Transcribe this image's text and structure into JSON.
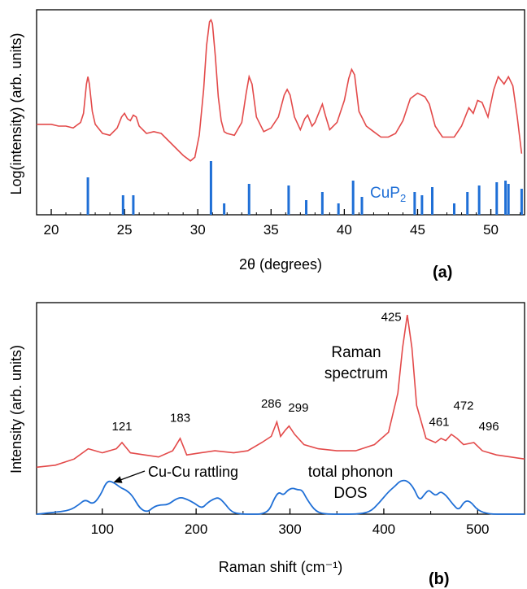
{
  "colors": {
    "red": "#e34a4a",
    "blue": "#1f6fd6",
    "axis": "#000000"
  },
  "chart_data": [
    {
      "type": "line",
      "panel_label": "(a)",
      "xlabel": "2θ (degrees)",
      "ylabel": "Log(intensity) (arb. units)",
      "xlim": [
        19,
        52.3
      ],
      "ylim": [
        0,
        1
      ],
      "xticks": [
        20,
        25,
        30,
        35,
        40,
        45,
        50
      ],
      "series": [
        {
          "name": "",
          "color": "#e34a4a",
          "x": [
            19.0,
            19.5,
            20.0,
            20.5,
            21.0,
            21.5,
            22.0,
            22.2,
            22.4,
            22.5,
            22.6,
            22.8,
            23.0,
            23.5,
            24.0,
            24.5,
            24.8,
            25.0,
            25.2,
            25.4,
            25.6,
            25.8,
            26.0,
            26.5,
            27.0,
            27.5,
            28.0,
            28.5,
            29.0,
            29.5,
            29.8,
            30.1,
            30.4,
            30.6,
            30.8,
            30.9,
            31.0,
            31.2,
            31.4,
            31.6,
            31.8,
            32.0,
            32.5,
            33.0,
            33.3,
            33.5,
            33.7,
            34.0,
            34.5,
            35.0,
            35.5,
            35.9,
            36.1,
            36.3,
            36.6,
            37.0,
            37.3,
            37.5,
            37.8,
            38.0,
            38.3,
            38.5,
            38.7,
            39.0,
            39.5,
            40.0,
            40.3,
            40.5,
            40.7,
            41.0,
            41.5,
            42.0,
            42.5,
            43.0,
            43.5,
            44.0,
            44.5,
            45.0,
            45.5,
            45.8,
            46.2,
            46.7,
            47.5,
            48.0,
            48.5,
            48.8,
            49.1,
            49.4,
            49.8,
            50.2,
            50.5,
            50.9,
            51.2,
            51.5,
            51.8,
            52.1
          ],
          "y": [
            0.41,
            0.41,
            0.41,
            0.4,
            0.4,
            0.39,
            0.42,
            0.47,
            0.63,
            0.67,
            0.63,
            0.48,
            0.41,
            0.36,
            0.35,
            0.39,
            0.45,
            0.47,
            0.44,
            0.43,
            0.46,
            0.45,
            0.4,
            0.36,
            0.37,
            0.36,
            0.32,
            0.28,
            0.24,
            0.21,
            0.23,
            0.35,
            0.6,
            0.84,
            0.97,
            0.98,
            0.96,
            0.78,
            0.56,
            0.43,
            0.37,
            0.36,
            0.35,
            0.42,
            0.58,
            0.67,
            0.63,
            0.45,
            0.37,
            0.39,
            0.45,
            0.57,
            0.6,
            0.57,
            0.45,
            0.38,
            0.44,
            0.46,
            0.4,
            0.42,
            0.48,
            0.52,
            0.46,
            0.38,
            0.42,
            0.54,
            0.66,
            0.71,
            0.68,
            0.48,
            0.4,
            0.37,
            0.34,
            0.34,
            0.36,
            0.43,
            0.55,
            0.58,
            0.56,
            0.52,
            0.4,
            0.34,
            0.34,
            0.4,
            0.5,
            0.47,
            0.54,
            0.53,
            0.45,
            0.6,
            0.67,
            0.63,
            0.67,
            0.62,
            0.45,
            0.25
          ]
        }
      ],
      "reference_label": "CuP2",
      "reference_label_main": "CuP",
      "reference_label_sub": "2",
      "reference_peaks": {
        "x": [
          22.5,
          24.9,
          25.6,
          30.9,
          31.8,
          33.5,
          36.2,
          37.4,
          38.5,
          39.6,
          40.6,
          41.2,
          44.8,
          45.3,
          46.0,
          47.5,
          48.4,
          49.2,
          50.4,
          51.0,
          51.2,
          52.1
        ],
        "y": [
          0.23,
          0.12,
          0.12,
          0.33,
          0.07,
          0.19,
          0.18,
          0.09,
          0.14,
          0.07,
          0.21,
          0.11,
          0.14,
          0.12,
          0.17,
          0.07,
          0.14,
          0.18,
          0.2,
          0.21,
          0.19,
          0.16
        ]
      }
    },
    {
      "type": "line",
      "panel_label": "(b)",
      "xlabel": "Raman shift (cm⁻¹)",
      "ylabel": "Intensity (arb. units)",
      "xlim": [
        30,
        550
      ],
      "ylim": [
        0,
        1
      ],
      "xticks": [
        100,
        200,
        300,
        400,
        500
      ],
      "series": [
        {
          "name": "Raman spectrum",
          "label_lines": [
            "Raman",
            "spectrum"
          ],
          "color": "#e34a4a",
          "x": [
            30,
            50,
            70,
            85,
            100,
            115,
            121,
            130,
            145,
            160,
            175,
            183,
            190,
            205,
            220,
            240,
            255,
            270,
            280,
            286,
            290,
            295,
            299,
            305,
            315,
            330,
            350,
            370,
            390,
            405,
            415,
            420,
            425,
            430,
            435,
            445,
            455,
            461,
            466,
            472,
            478,
            485,
            496,
            505,
            520,
            535,
            550
          ],
          "y": [
            0.22,
            0.23,
            0.26,
            0.31,
            0.29,
            0.31,
            0.34,
            0.29,
            0.28,
            0.27,
            0.3,
            0.36,
            0.28,
            0.29,
            0.3,
            0.29,
            0.3,
            0.34,
            0.37,
            0.44,
            0.37,
            0.4,
            0.42,
            0.38,
            0.33,
            0.31,
            0.3,
            0.3,
            0.33,
            0.39,
            0.58,
            0.8,
            0.96,
            0.8,
            0.52,
            0.36,
            0.34,
            0.36,
            0.35,
            0.38,
            0.36,
            0.33,
            0.34,
            0.3,
            0.28,
            0.27,
            0.26
          ]
        },
        {
          "name": "total phonon DOS",
          "label_lines": [
            "total phonon",
            "DOS"
          ],
          "color": "#1f6fd6",
          "x": [
            30,
            50,
            65,
            75,
            82,
            90,
            98,
            105,
            112,
            120,
            125,
            132,
            140,
            148,
            155,
            162,
            170,
            178,
            184,
            190,
            198,
            206,
            212,
            218,
            224,
            230,
            238,
            248,
            260,
            270,
            278,
            283,
            288,
            293,
            298,
            303,
            308,
            313,
            318,
            328,
            340,
            355,
            370,
            385,
            395,
            405,
            412,
            418,
            425,
            432,
            438,
            444,
            448,
            452,
            456,
            460,
            464,
            468,
            474,
            480,
            486,
            492,
            500,
            512,
            530,
            550
          ],
          "y": [
            0.0,
            0.01,
            0.02,
            0.05,
            0.08,
            0.05,
            0.1,
            0.18,
            0.17,
            0.14,
            0.13,
            0.1,
            0.03,
            0.01,
            0.04,
            0.05,
            0.05,
            0.08,
            0.09,
            0.08,
            0.06,
            0.03,
            0.06,
            0.08,
            0.09,
            0.06,
            0.01,
            0.0,
            0.0,
            0.0,
            0.02,
            0.08,
            0.12,
            0.1,
            0.13,
            0.14,
            0.13,
            0.13,
            0.08,
            0.01,
            0.0,
            0.0,
            0.0,
            0.01,
            0.06,
            0.12,
            0.15,
            0.18,
            0.18,
            0.14,
            0.07,
            0.11,
            0.13,
            0.11,
            0.1,
            0.12,
            0.11,
            0.09,
            0.05,
            0.02,
            0.07,
            0.07,
            0.02,
            0.0,
            0.0,
            0.0
          ]
        }
      ],
      "peak_labels": [
        {
          "text": "121",
          "x": 121,
          "y": 0.4
        },
        {
          "text": "183",
          "x": 183,
          "y": 0.44
        },
        {
          "text": "286",
          "x": 280,
          "y": 0.51
        },
        {
          "text": "299",
          "x": 309,
          "y": 0.49
        },
        {
          "text": "425",
          "x": 408,
          "y": 0.93
        },
        {
          "text": "461",
          "x": 459,
          "y": 0.42
        },
        {
          "text": "472",
          "x": 485,
          "y": 0.5
        },
        {
          "text": "496",
          "x": 512,
          "y": 0.4
        }
      ],
      "annotation": {
        "text": "Cu-Cu rattling",
        "arrow_to_x": 112,
        "arrow_to_y": 0.17
      }
    }
  ]
}
